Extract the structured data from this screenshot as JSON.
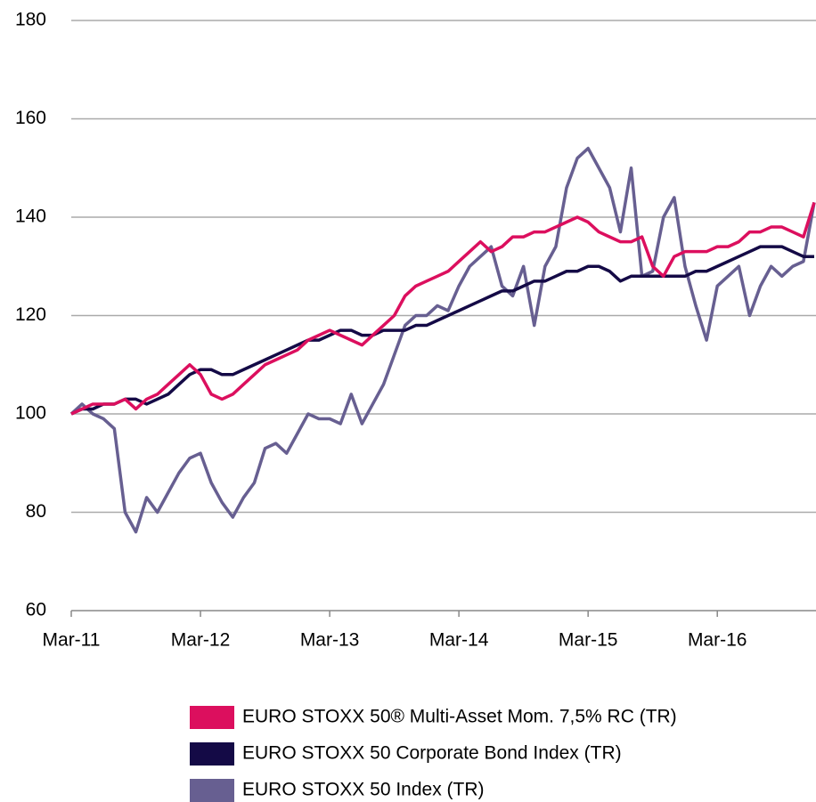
{
  "chart_data": {
    "type": "line",
    "x": [
      "Mar-11",
      "Apr-11",
      "May-11",
      "Jun-11",
      "Jul-11",
      "Aug-11",
      "Sep-11",
      "Oct-11",
      "Nov-11",
      "Dec-11",
      "Jan-12",
      "Feb-12",
      "Mar-12",
      "Apr-12",
      "May-12",
      "Jun-12",
      "Jul-12",
      "Aug-12",
      "Sep-12",
      "Oct-12",
      "Nov-12",
      "Dec-12",
      "Jan-13",
      "Feb-13",
      "Mar-13",
      "Apr-13",
      "May-13",
      "Jun-13",
      "Jul-13",
      "Aug-13",
      "Sep-13",
      "Oct-13",
      "Nov-13",
      "Dec-13",
      "Jan-14",
      "Feb-14",
      "Mar-14",
      "Apr-14",
      "May-14",
      "Jun-14",
      "Jul-14",
      "Aug-14",
      "Sep-14",
      "Oct-14",
      "Nov-14",
      "Dec-14",
      "Jan-15",
      "Feb-15",
      "Mar-15",
      "Apr-15",
      "May-15",
      "Jun-15",
      "Jul-15",
      "Aug-15",
      "Sep-15",
      "Oct-15",
      "Nov-15",
      "Dec-15",
      "Jan-16",
      "Feb-16",
      "Mar-16",
      "Apr-16",
      "May-16",
      "Jun-16",
      "Jul-16",
      "Aug-16",
      "Sep-16",
      "Oct-16",
      "Nov-16",
      "Dec-16"
    ],
    "series": [
      {
        "name": "EURO STOXX 50® Multi-Asset Mom. 7,5% RC (TR)",
        "color": "#dc0f5e",
        "values": [
          100,
          101,
          102,
          102,
          102,
          103,
          101,
          103,
          104,
          106,
          108,
          110,
          108,
          104,
          103,
          104,
          106,
          108,
          110,
          111,
          112,
          113,
          115,
          116,
          117,
          116,
          115,
          114,
          116,
          118,
          120,
          124,
          126,
          127,
          128,
          129,
          131,
          133,
          135,
          133,
          134,
          136,
          136,
          137,
          137,
          138,
          139,
          140,
          139,
          137,
          136,
          135,
          135,
          136,
          130,
          128,
          132,
          133,
          133,
          133,
          134,
          134,
          135,
          137,
          137,
          138,
          138,
          137,
          136,
          143
        ]
      },
      {
        "name": "EURO STOXX 50 Corporate Bond Index (TR)",
        "color": "#140a46",
        "values": [
          100,
          101,
          101,
          102,
          102,
          103,
          103,
          102,
          103,
          104,
          106,
          108,
          109,
          109,
          108,
          108,
          109,
          110,
          111,
          112,
          113,
          114,
          115,
          115,
          116,
          117,
          117,
          116,
          116,
          117,
          117,
          117,
          118,
          118,
          119,
          120,
          121,
          122,
          123,
          124,
          125,
          125,
          126,
          127,
          127,
          128,
          129,
          129,
          130,
          130,
          129,
          127,
          128,
          128,
          128,
          128,
          128,
          128,
          129,
          129,
          130,
          131,
          132,
          133,
          134,
          134,
          134,
          133,
          132,
          132
        ]
      },
      {
        "name": "EURO STOXX 50 Index (TR)",
        "color": "#675f91",
        "values": [
          100,
          102,
          100,
          99,
          97,
          80,
          76,
          83,
          80,
          84,
          88,
          91,
          92,
          86,
          82,
          79,
          83,
          86,
          93,
          94,
          92,
          96,
          100,
          99,
          99,
          98,
          104,
          98,
          102,
          106,
          112,
          118,
          120,
          120,
          122,
          121,
          126,
          130,
          132,
          134,
          126,
          124,
          130,
          118,
          130,
          134,
          146,
          152,
          154,
          150,
          146,
          137,
          150,
          128,
          129,
          140,
          144,
          130,
          122,
          115,
          126,
          128,
          130,
          120,
          126,
          130,
          128,
          130,
          131,
          143
        ]
      }
    ],
    "xlim": [
      "Mar-11",
      "Dec-16"
    ],
    "xticks": [
      "Mar-11",
      "Mar-12",
      "Mar-13",
      "Mar-14",
      "Mar-15",
      "Mar-16"
    ],
    "ylim": [
      60,
      180
    ],
    "yticks": [
      60,
      80,
      100,
      120,
      140,
      160,
      180
    ],
    "grid": true
  }
}
